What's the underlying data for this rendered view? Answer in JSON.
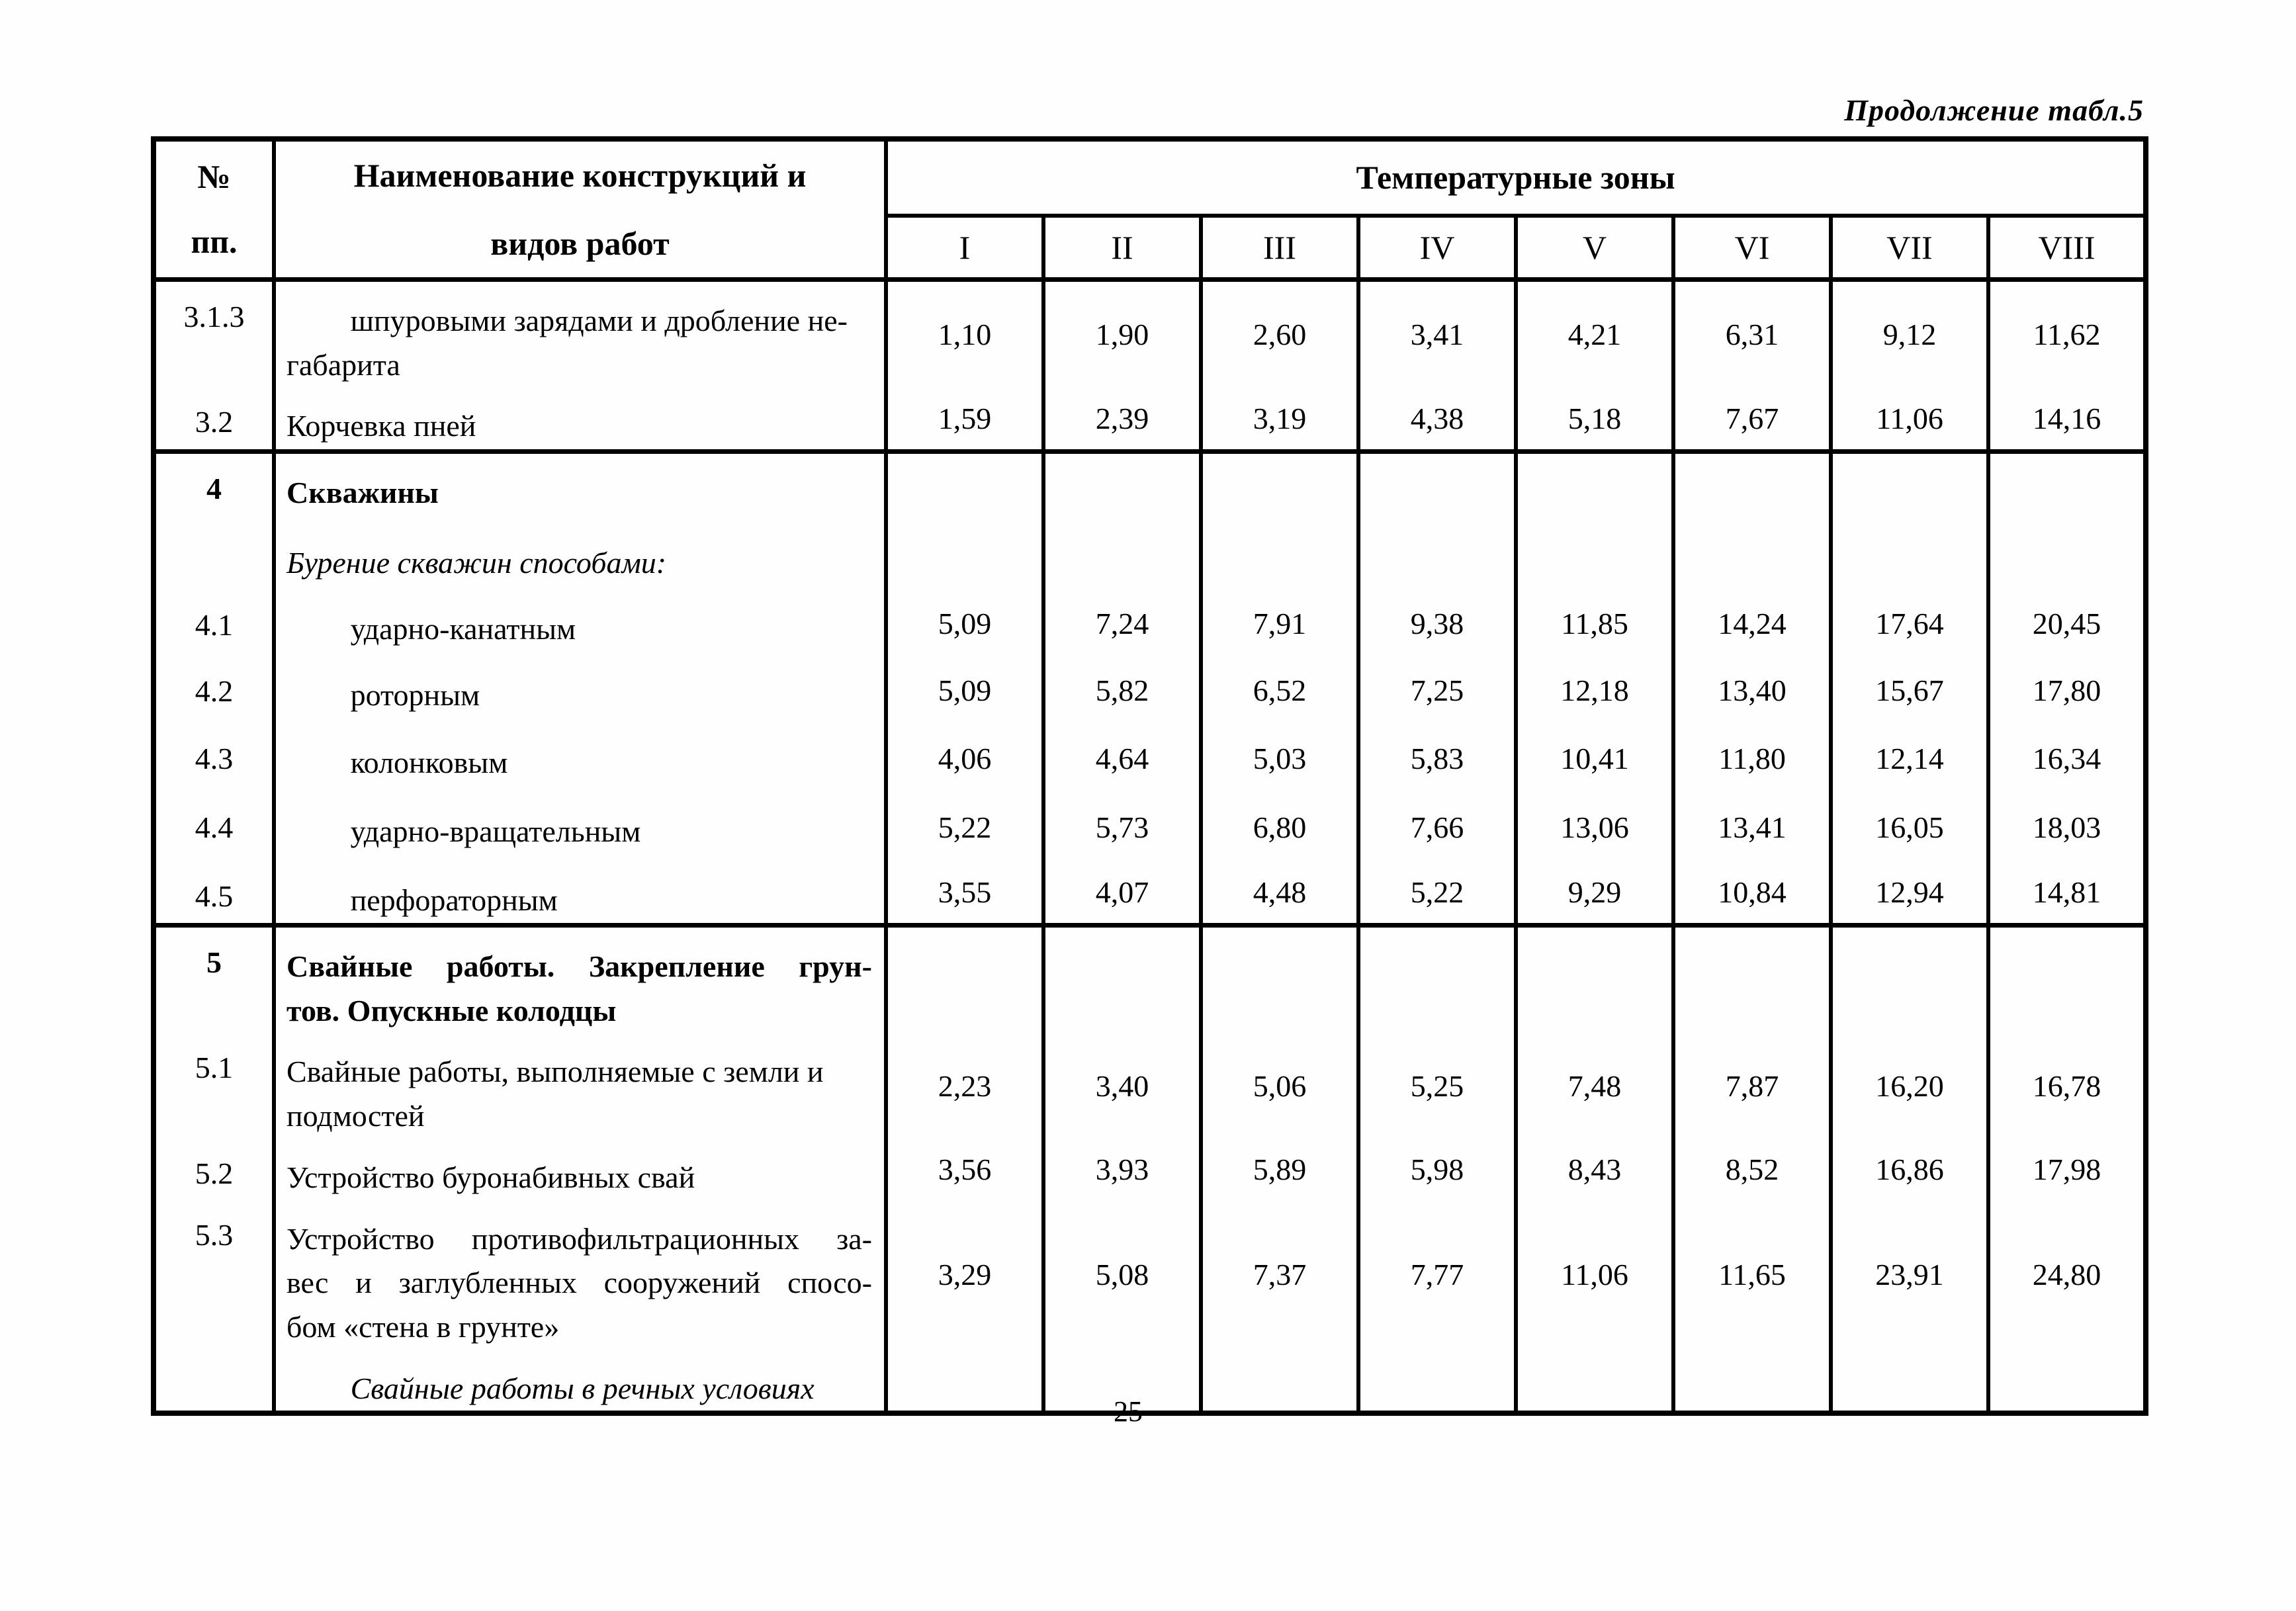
{
  "page": {
    "continuation_title": "Продолжение табл.5",
    "page_number": "25"
  },
  "table": {
    "header": {
      "num_label": "№\nпп.",
      "name_label": "Наименование конструкций и\nвидов работ",
      "zones_label": "Температурные зоны",
      "zone_columns": [
        "I",
        "II",
        "III",
        "IV",
        "V",
        "VI",
        "VII",
        "VIII"
      ]
    },
    "rows": [
      {
        "num": "3.1.3",
        "lines": [
          "шпуровыми зарядами и дробление не-",
          "габарита"
        ],
        "indent": true,
        "values": [
          "1,10",
          "1,90",
          "2,60",
          "3,41",
          "4,21",
          "6,31",
          "9,12",
          "11,62"
        ]
      },
      {
        "num": "3.2",
        "lines": [
          "Корчевка пней"
        ],
        "values": [
          "1,59",
          "2,39",
          "3,19",
          "4,38",
          "5,18",
          "7,67",
          "11,06",
          "14,16"
        ],
        "section_end": true
      },
      {
        "num": "4",
        "style": "section",
        "lines": [
          "Скважины"
        ],
        "values": []
      },
      {
        "num": "",
        "style": "note",
        "lines": [
          "Бурение скважин способами:"
        ],
        "values": []
      },
      {
        "num": "4.1",
        "lines": [
          "ударно-канатным"
        ],
        "indent": true,
        "values": [
          "5,09",
          "7,24",
          "7,91",
          "9,38",
          "11,85",
          "14,24",
          "17,64",
          "20,45"
        ]
      },
      {
        "num": "4.2",
        "lines": [
          "роторным"
        ],
        "indent": true,
        "values": [
          "5,09",
          "5,82",
          "6,52",
          "7,25",
          "12,18",
          "13,40",
          "15,67",
          "17,80"
        ]
      },
      {
        "num": "4.3",
        "lines": [
          "колонковым"
        ],
        "indent": true,
        "values": [
          "4,06",
          "4,64",
          "5,03",
          "5,83",
          "10,41",
          "11,80",
          "12,14",
          "16,34"
        ]
      },
      {
        "num": "4.4",
        "lines": [
          "ударно-вращательным"
        ],
        "indent": true,
        "values": [
          "5,22",
          "5,73",
          "6,80",
          "7,66",
          "13,06",
          "13,41",
          "16,05",
          "18,03"
        ]
      },
      {
        "num": "4.5",
        "lines": [
          "перфораторным"
        ],
        "indent": true,
        "values": [
          "3,55",
          "4,07",
          "4,48",
          "5,22",
          "9,29",
          "10,84",
          "12,94",
          "14,81"
        ],
        "section_end": true
      },
      {
        "num": "5",
        "style": "section",
        "justify": true,
        "lines": [
          "Свайные работы. Закрепление грун-",
          "тов. Опускные колодцы"
        ],
        "values": []
      },
      {
        "num": "5.1",
        "lines": [
          "Свайные работы, выполняемые с земли и",
          "подмостей"
        ],
        "values": [
          "2,23",
          "3,40",
          "5,06",
          "5,25",
          "7,48",
          "7,87",
          "16,20",
          "16,78"
        ]
      },
      {
        "num": "5.2",
        "lines": [
          "Устройство буронабивных свай"
        ],
        "values": [
          "3,56",
          "3,93",
          "5,89",
          "5,98",
          "8,43",
          "8,52",
          "16,86",
          "17,98"
        ]
      },
      {
        "num": "5.3",
        "justify": true,
        "lines": [
          "Устройство противофильтрационных за-",
          "вес и заглубленных сооружений спосо-",
          "бом «стена в грунте»"
        ],
        "values": [
          "3,29",
          "5,08",
          "7,37",
          "7,77",
          "11,06",
          "11,65",
          "23,91",
          "24,80"
        ]
      },
      {
        "num": "",
        "style": "note",
        "indent": true,
        "lines": [
          "Свайные работы в речных условиях"
        ],
        "values": []
      }
    ]
  }
}
